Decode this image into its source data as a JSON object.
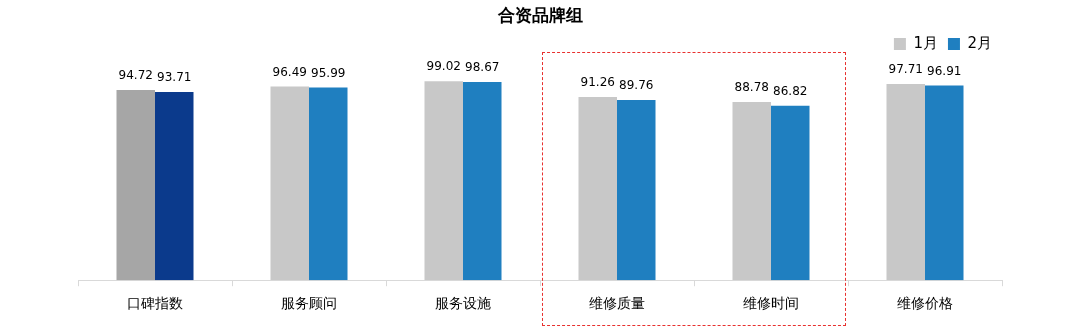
{
  "chart_data": {
    "type": "bar",
    "title": "合资品牌组",
    "categories": [
      "口碑指数",
      "服务顾问",
      "服务设施",
      "维修质量",
      "维修时间",
      "维修价格"
    ],
    "series": [
      {
        "name": "1月",
        "color": "#c8c8c8",
        "colors": [
          "#a6a6a6",
          "#c8c8c8",
          "#c8c8c8",
          "#c8c8c8",
          "#c8c8c8",
          "#c8c8c8"
        ],
        "values": [
          94.72,
          96.49,
          99.02,
          91.26,
          88.78,
          97.71
        ]
      },
      {
        "name": "2月",
        "color": "#1f7fc0",
        "colors": [
          "#0b3a8c",
          "#1f7fc0",
          "#1f7fc0",
          "#1f7fc0",
          "#1f7fc0",
          "#1f7fc0"
        ],
        "values": [
          93.71,
          95.99,
          98.67,
          89.76,
          86.82,
          96.91
        ]
      }
    ],
    "data_labels": true,
    "legend": "top right",
    "grid": false
  }
}
